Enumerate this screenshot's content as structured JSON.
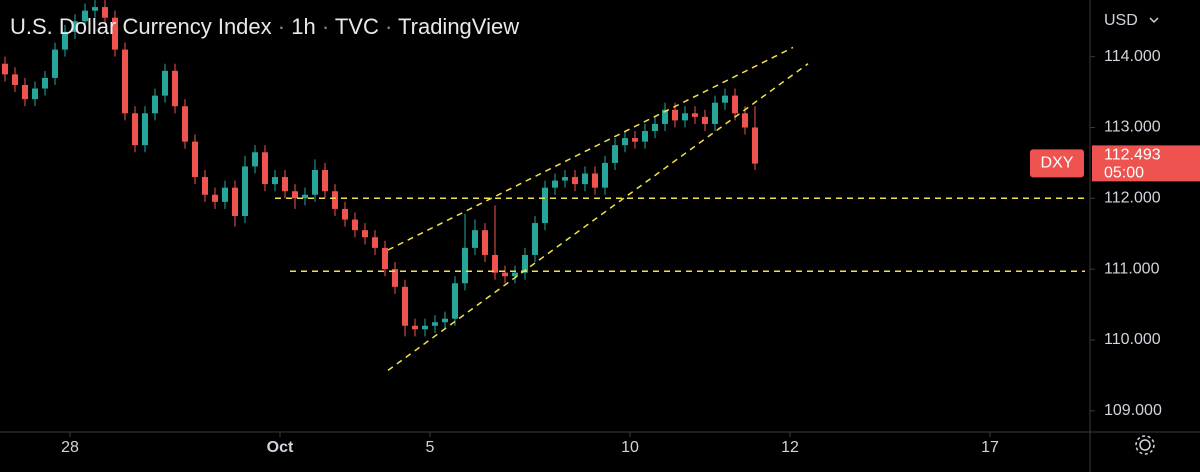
{
  "chart_data": {
    "type": "candlestick",
    "title_parts": [
      "U.S. Dollar Currency Index",
      "1h",
      "TVC",
      "TradingView"
    ],
    "currency": "USD",
    "up_color": "#26a69a",
    "down_color": "#ef5350",
    "open": [
      113.9,
      113.75,
      113.6,
      113.4,
      113.55,
      113.7,
      114.1,
      114.35,
      114.5,
      114.65,
      114.7,
      114.55,
      114.1,
      113.2,
      112.75,
      113.2,
      113.45,
      113.8,
      113.3,
      112.8,
      112.3,
      112.05,
      111.95,
      112.15,
      111.75,
      112.45,
      112.65,
      112.2,
      112.3,
      112.1,
      112.0,
      112.05,
      112.4,
      112.1,
      111.85,
      111.7,
      111.55,
      111.45,
      111.3,
      111.0,
      110.75,
      110.2,
      110.15,
      110.2,
      110.25,
      110.3,
      110.8,
      111.3,
      111.55,
      111.2,
      110.95,
      110.9,
      110.95,
      111.2,
      111.65,
      112.15,
      112.25,
      112.3,
      112.2,
      112.35,
      112.15,
      112.5,
      112.75,
      112.85,
      112.8,
      112.95,
      113.05,
      113.25,
      113.1,
      113.2,
      113.15,
      113.05,
      113.35,
      113.45,
      113.2,
      113.0
    ],
    "high": [
      114.0,
      113.85,
      113.7,
      113.65,
      113.8,
      114.2,
      114.45,
      114.6,
      114.75,
      114.8,
      114.8,
      114.65,
      114.2,
      113.3,
      113.3,
      113.55,
      113.9,
      113.9,
      113.4,
      112.9,
      112.4,
      112.15,
      112.25,
      112.25,
      112.6,
      112.75,
      112.75,
      112.4,
      112.4,
      112.2,
      112.15,
      112.55,
      112.5,
      112.2,
      111.95,
      111.8,
      111.65,
      111.55,
      111.4,
      111.1,
      110.85,
      110.3,
      110.3,
      110.35,
      110.4,
      110.9,
      111.78,
      111.7,
      111.65,
      111.9,
      111.05,
      111.05,
      111.3,
      111.75,
      112.25,
      112.35,
      112.4,
      112.4,
      112.45,
      112.45,
      112.6,
      112.85,
      112.95,
      112.95,
      113.05,
      113.15,
      113.35,
      113.35,
      113.3,
      113.3,
      113.25,
      113.45,
      113.55,
      113.55,
      113.3,
      113.3
    ],
    "low": [
      113.65,
      113.5,
      113.3,
      113.3,
      113.45,
      113.6,
      114.0,
      114.25,
      114.4,
      114.55,
      114.45,
      114.0,
      113.1,
      112.65,
      112.65,
      113.1,
      113.35,
      113.2,
      112.7,
      112.2,
      111.95,
      111.85,
      111.85,
      111.6,
      111.65,
      112.35,
      112.1,
      112.1,
      112.0,
      111.85,
      111.9,
      111.95,
      112.0,
      111.75,
      111.6,
      111.45,
      111.35,
      111.2,
      110.9,
      110.65,
      110.05,
      110.05,
      110.05,
      110.1,
      110.15,
      110.2,
      110.7,
      111.2,
      111.1,
      110.85,
      110.8,
      110.8,
      110.85,
      111.1,
      111.55,
      112.05,
      112.15,
      112.1,
      112.1,
      112.05,
      112.05,
      112.4,
      112.65,
      112.7,
      112.7,
      112.85,
      112.95,
      113.0,
      113.0,
      113.05,
      112.95,
      112.95,
      113.25,
      113.1,
      112.9,
      112.4
    ],
    "close": [
      113.75,
      113.6,
      113.4,
      113.55,
      113.7,
      114.1,
      114.35,
      114.5,
      114.65,
      114.7,
      114.55,
      114.1,
      113.2,
      112.75,
      113.2,
      113.45,
      113.8,
      113.3,
      112.8,
      112.3,
      112.05,
      111.95,
      112.15,
      111.75,
      112.45,
      112.65,
      112.2,
      112.3,
      112.1,
      112.0,
      112.05,
      112.4,
      112.1,
      111.85,
      111.7,
      111.55,
      111.45,
      111.3,
      111.0,
      110.75,
      110.2,
      110.15,
      110.2,
      110.25,
      110.3,
      110.8,
      111.3,
      111.55,
      111.2,
      110.95,
      110.9,
      110.95,
      111.2,
      111.65,
      112.15,
      112.25,
      112.3,
      112.2,
      112.35,
      112.15,
      112.5,
      112.75,
      112.85,
      112.8,
      112.95,
      113.05,
      113.25,
      113.1,
      113.2,
      113.15,
      113.05,
      113.35,
      113.45,
      113.2,
      113.0,
      112.49
    ],
    "xlim": [
      0,
      109
    ],
    "xticks": [
      {
        "value": 7,
        "label": "28"
      },
      {
        "value": 28,
        "label": "Oct"
      },
      {
        "value": 43,
        "label": "5"
      },
      {
        "value": 63,
        "label": "10"
      },
      {
        "value": 79,
        "label": "12"
      },
      {
        "value": 99,
        "label": "17"
      }
    ],
    "ylim": [
      108.7,
      114.8
    ],
    "yticks": [
      {
        "value": 114,
        "label": "114.000"
      },
      {
        "value": 113,
        "label": "113.000"
      },
      {
        "value": 112,
        "label": "112.000"
      },
      {
        "value": 111,
        "label": "111.000"
      },
      {
        "value": 110,
        "label": "110.000"
      },
      {
        "value": 109,
        "label": "109.000"
      }
    ],
    "grid": false,
    "line_color": "#f2e24a",
    "lines": [
      {
        "x": [
          27.5,
          108.5
        ],
        "y": [
          112.0,
          112.0
        ]
      },
      {
        "x": [
          29,
          108.5
        ],
        "y": [
          110.97,
          110.97
        ]
      },
      {
        "x": [
          38.8,
          79.3
        ],
        "y": [
          111.27,
          114.13
        ]
      },
      {
        "x": [
          38.8,
          80.8
        ],
        "y": [
          109.57,
          113.9
        ]
      }
    ],
    "last_price": {
      "symbol": "DXY",
      "value": 112.493,
      "countdown": "05:00"
    }
  }
}
